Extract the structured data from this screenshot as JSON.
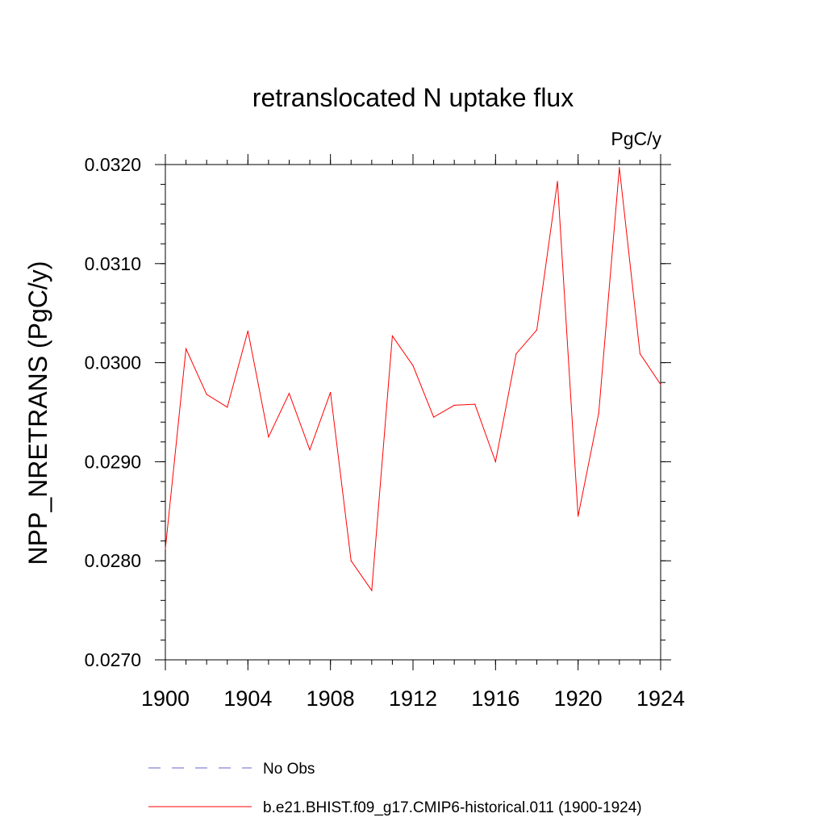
{
  "chart_data": {
    "type": "line",
    "title": "retranslocated N uptake flux",
    "units": "PgC/y",
    "xlabel": "",
    "ylabel": "NPP_NRETRANS  (PgC/y)",
    "xlim": [
      1900,
      1924
    ],
    "ylim": [
      0.027,
      0.032
    ],
    "x_ticks": [
      1900,
      1904,
      1908,
      1912,
      1916,
      1920,
      1924
    ],
    "x_tick_labels": [
      "1900",
      "1904",
      "1908",
      "1912",
      "1916",
      "1920",
      "1924"
    ],
    "y_ticks": [
      0.027,
      0.028,
      0.029,
      0.03,
      0.031,
      0.032
    ],
    "y_tick_labels": [
      "0.0270",
      "0.0280",
      "0.0290",
      "0.0300",
      "0.0310",
      "0.0320"
    ],
    "grid": false,
    "legend_position": "bottom",
    "x": [
      1900,
      1901,
      1902,
      1903,
      1904,
      1905,
      1906,
      1907,
      1908,
      1909,
      1910,
      1911,
      1912,
      1913,
      1914,
      1915,
      1916,
      1917,
      1918,
      1919,
      1920,
      1921,
      1922,
      1923,
      1924
    ],
    "series": [
      {
        "name": "b.e21.BHIST.f09_g17.CMIP6-historical.011 (1900-1924)",
        "color": "#ff0000",
        "dash": "solid",
        "values": [
          0.02812,
          0.03014,
          0.02968,
          0.02955,
          0.03032,
          0.02925,
          0.02969,
          0.02912,
          0.0297,
          0.028,
          0.0277,
          0.03027,
          0.02997,
          0.02945,
          0.02957,
          0.02958,
          0.029,
          0.03009,
          0.03033,
          0.03183,
          0.02845,
          0.02949,
          0.03197,
          0.03009,
          0.02978
        ]
      }
    ],
    "legend": [
      {
        "label": "No Obs",
        "color": "#6666cc",
        "dash": "dashed"
      },
      {
        "label": "b.e21.BHIST.f09_g17.CMIP6-historical.011 (1900-1924)",
        "color": "#ff0000",
        "dash": "solid"
      }
    ]
  }
}
